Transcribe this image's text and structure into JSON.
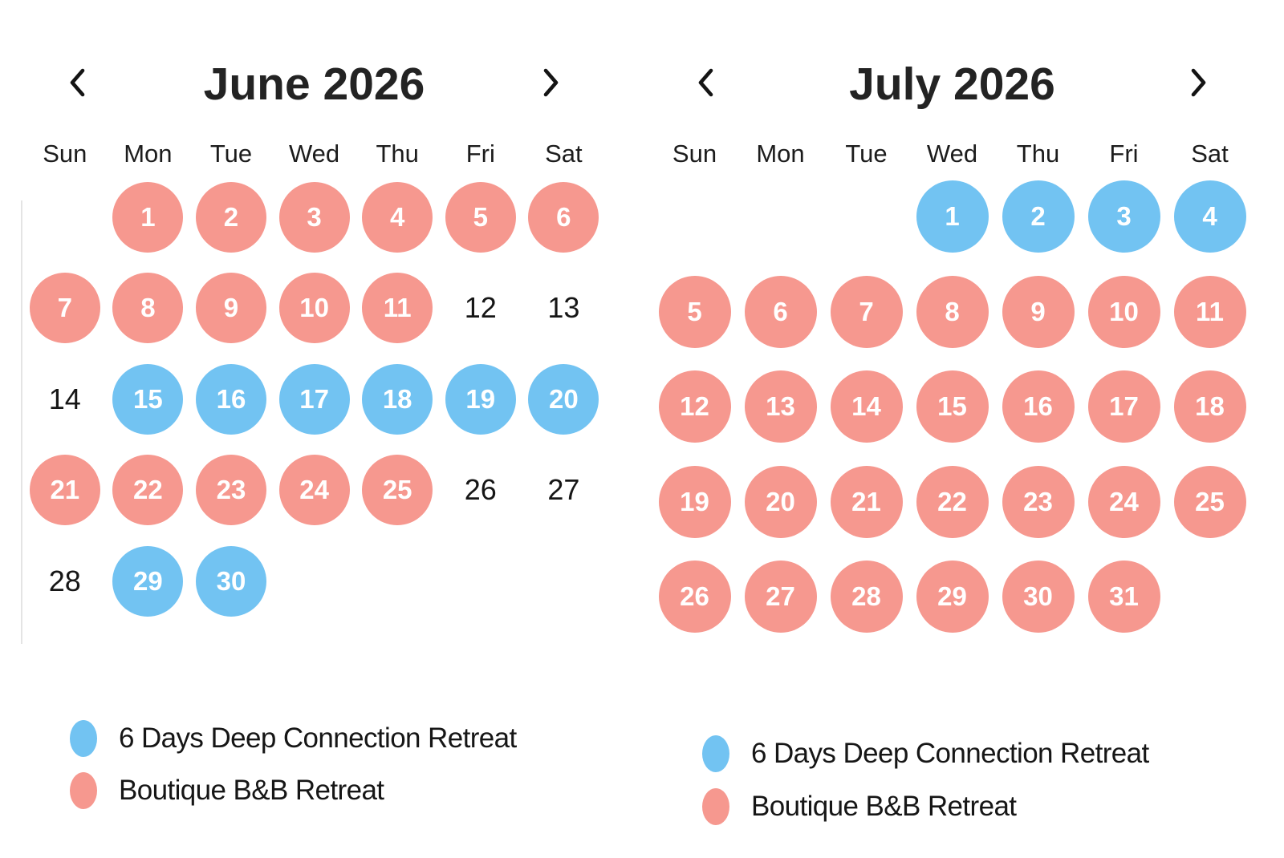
{
  "colors": {
    "pink": "#F6988F",
    "blue": "#72C3F2",
    "circle_text": "#FFFFFF",
    "plain_text": "#161616",
    "heading_text": "#232323",
    "divider": "#E4E4E4"
  },
  "icons": {
    "prev": "chevron-left",
    "next": "chevron-right"
  },
  "calendars": [
    {
      "key": "june",
      "title": "June 2026",
      "weekdays": [
        "Sun",
        "Mon",
        "Tue",
        "Wed",
        "Thu",
        "Fri",
        "Sat"
      ],
      "weeks": [
        [
          null,
          {
            "d": "1",
            "t": "pink"
          },
          {
            "d": "2",
            "t": "pink"
          },
          {
            "d": "3",
            "t": "pink"
          },
          {
            "d": "4",
            "t": "pink"
          },
          {
            "d": "5",
            "t": "pink"
          },
          {
            "d": "6",
            "t": "pink"
          }
        ],
        [
          {
            "d": "7",
            "t": "pink"
          },
          {
            "d": "8",
            "t": "pink"
          },
          {
            "d": "9",
            "t": "pink"
          },
          {
            "d": "10",
            "t": "pink"
          },
          {
            "d": "11",
            "t": "pink"
          },
          {
            "d": "12",
            "t": "plain"
          },
          {
            "d": "13",
            "t": "plain"
          }
        ],
        [
          {
            "d": "14",
            "t": "plain"
          },
          {
            "d": "15",
            "t": "blue"
          },
          {
            "d": "16",
            "t": "blue"
          },
          {
            "d": "17",
            "t": "blue"
          },
          {
            "d": "18",
            "t": "blue"
          },
          {
            "d": "19",
            "t": "blue"
          },
          {
            "d": "20",
            "t": "blue"
          }
        ],
        [
          {
            "d": "21",
            "t": "pink"
          },
          {
            "d": "22",
            "t": "pink"
          },
          {
            "d": "23",
            "t": "pink"
          },
          {
            "d": "24",
            "t": "pink"
          },
          {
            "d": "25",
            "t": "pink"
          },
          {
            "d": "26",
            "t": "plain"
          },
          {
            "d": "27",
            "t": "plain"
          }
        ],
        [
          {
            "d": "28",
            "t": "plain"
          },
          {
            "d": "29",
            "t": "blue"
          },
          {
            "d": "30",
            "t": "blue"
          },
          null,
          null,
          null,
          null
        ]
      ],
      "legend": [
        {
          "type": "blue",
          "label": "6 Days Deep Connection Retreat"
        },
        {
          "type": "pink",
          "label": "Boutique B&B Retreat"
        }
      ]
    },
    {
      "key": "july",
      "title": "July 2026",
      "weekdays": [
        "Sun",
        "Mon",
        "Tue",
        "Wed",
        "Thu",
        "Fri",
        "Sat"
      ],
      "weeks": [
        [
          null,
          null,
          null,
          {
            "d": "1",
            "t": "blue"
          },
          {
            "d": "2",
            "t": "blue"
          },
          {
            "d": "3",
            "t": "blue"
          },
          {
            "d": "4",
            "t": "blue"
          }
        ],
        [
          {
            "d": "5",
            "t": "pink"
          },
          {
            "d": "6",
            "t": "pink"
          },
          {
            "d": "7",
            "t": "pink"
          },
          {
            "d": "8",
            "t": "pink"
          },
          {
            "d": "9",
            "t": "pink"
          },
          {
            "d": "10",
            "t": "pink"
          },
          {
            "d": "11",
            "t": "pink"
          }
        ],
        [
          {
            "d": "12",
            "t": "pink"
          },
          {
            "d": "13",
            "t": "pink"
          },
          {
            "d": "14",
            "t": "pink"
          },
          {
            "d": "15",
            "t": "pink"
          },
          {
            "d": "16",
            "t": "pink"
          },
          {
            "d": "17",
            "t": "pink"
          },
          {
            "d": "18",
            "t": "pink"
          }
        ],
        [
          {
            "d": "19",
            "t": "pink"
          },
          {
            "d": "20",
            "t": "pink"
          },
          {
            "d": "21",
            "t": "pink"
          },
          {
            "d": "22",
            "t": "pink"
          },
          {
            "d": "23",
            "t": "pink"
          },
          {
            "d": "24",
            "t": "pink"
          },
          {
            "d": "25",
            "t": "pink"
          }
        ],
        [
          {
            "d": "26",
            "t": "pink"
          },
          {
            "d": "27",
            "t": "pink"
          },
          {
            "d": "28",
            "t": "pink"
          },
          {
            "d": "29",
            "t": "pink"
          },
          {
            "d": "30",
            "t": "pink"
          },
          {
            "d": "31",
            "t": "pink"
          },
          null
        ]
      ],
      "legend": [
        {
          "type": "blue",
          "label": "6 Days Deep Connection Retreat"
        },
        {
          "type": "pink",
          "label": "Boutique B&B Retreat"
        }
      ]
    }
  ]
}
